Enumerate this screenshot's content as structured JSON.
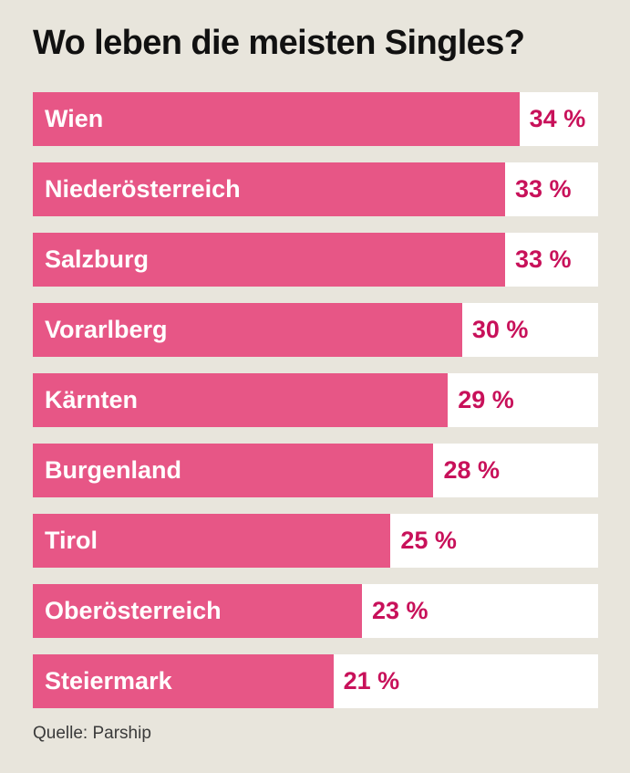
{
  "title": "Wo leben die meisten Singles?",
  "source": "Quelle: Parship",
  "colors": {
    "background": "#e8e5dc",
    "bar": "#e75686",
    "value_text": "#c8115a",
    "track": "#ffffff"
  },
  "chart_data": {
    "type": "bar",
    "orientation": "horizontal",
    "title": "Wo leben die meisten Singles?",
    "categories": [
      "Wien",
      "Niederösterreich",
      "Salzburg",
      "Vorarlberg",
      "Kärnten",
      "Burgenland",
      "Tirol",
      "Oberösterreich",
      "Steiermark"
    ],
    "values": [
      34,
      33,
      33,
      30,
      29,
      28,
      25,
      23,
      21
    ],
    "value_labels": [
      "34 %",
      "33 %",
      "33 %",
      "30 %",
      "29 %",
      "28 %",
      "25 %",
      "23 %",
      "21 %"
    ],
    "unit": "%",
    "xlim": [
      0,
      39.5
    ],
    "grid": false,
    "legend": "none"
  }
}
